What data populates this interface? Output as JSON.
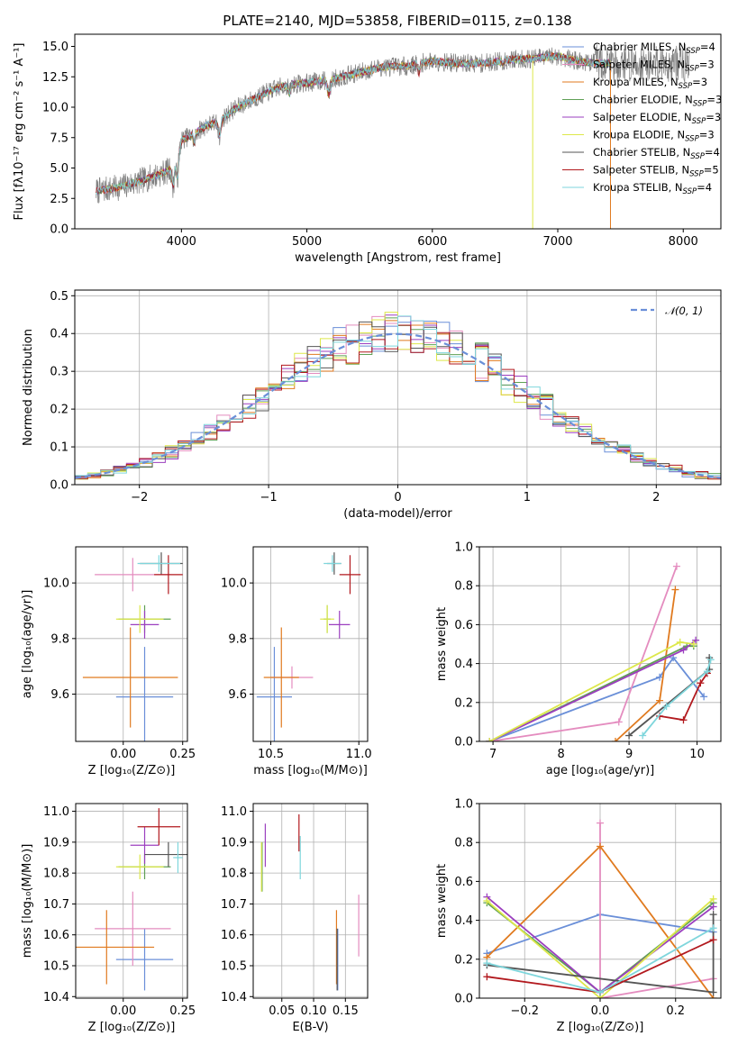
{
  "figure": {
    "title": "PLATE=2140, MJD=53858, FIBERID=0115, z=0.138"
  },
  "chart_data": [
    {
      "id": "spectrum",
      "type": "line",
      "title": "PLATE=2140, MJD=53858, FIBERID=0115, z=0.138",
      "xlabel": "wavelength [Angstrom, rest frame]",
      "ylabel": "Flux [f$_\\lambda$10$^{-17}$ erg cm$^{-2}$ s$^{-1}$ A$^{-1}$]",
      "ylabel_display": "Flux [fλ10⁻¹⁷ erg cm⁻² s⁻¹ A⁻¹]",
      "xlim": [
        3150,
        8300
      ],
      "ylim": [
        0,
        16
      ],
      "xticks": [
        4000,
        5000,
        6000,
        7000,
        8000
      ],
      "yticks": [
        0.0,
        2.5,
        5.0,
        7.5,
        10.0,
        12.5,
        15.0
      ],
      "grid": false,
      "legend": "top-right",
      "continuum": {
        "x": [
          3320,
          3500,
          3600,
          3700,
          3800,
          3900,
          3960,
          4000,
          4100,
          4200,
          4300,
          4400,
          4500,
          4600,
          4700,
          4800,
          4900,
          5000,
          5200,
          5400,
          5600,
          5800,
          6000,
          6200,
          6400,
          6600,
          6800,
          7000,
          7200,
          7400
        ],
        "y": [
          3.1,
          3.4,
          3.7,
          4.0,
          4.4,
          4.8,
          5.3,
          7.3,
          7.8,
          8.5,
          8.8,
          9.7,
          10.3,
          10.8,
          11.3,
          11.7,
          11.9,
          12.0,
          12.3,
          12.8,
          13.3,
          13.4,
          13.8,
          13.6,
          13.6,
          13.9,
          14.0,
          14.2,
          13.7,
          13.6
        ]
      },
      "data_x_range": [
        3320,
        8050
      ],
      "series": [
        {
          "name": "Chabrier MILES, N$_{SSP}$=4",
          "label_main": "Chabrier MILES, N",
          "label_sub": "SSP",
          "label_tail": "=4",
          "color": "#6a8fd8"
        },
        {
          "name": "Salpeter MILES, N$_{SSP}$=3",
          "label_main": "Salpeter MILES, N",
          "label_sub": "SSP",
          "label_tail": "=3",
          "color": "#e48cbf"
        },
        {
          "name": "Kroupa MILES, N$_{SSP}$=3",
          "label_main": "Kroupa MILES, N",
          "label_sub": "SSP",
          "label_tail": "=3",
          "color": "#e07a1f"
        },
        {
          "name": "Chabrier ELODIE, N$_{SSP}$=3",
          "label_main": "Chabrier ELODIE, N",
          "label_sub": "SSP",
          "label_tail": "=3",
          "color": "#5fa055"
        },
        {
          "name": "Salpeter ELODIE, N$_{SSP}$=3",
          "label_main": "Salpeter ELODIE, N",
          "label_sub": "SSP",
          "label_tail": "=3",
          "color": "#9b3fbf"
        },
        {
          "name": "Kroupa ELODIE, N$_{SSP}$=3",
          "label_main": "Kroupa ELODIE, N",
          "label_sub": "SSP",
          "label_tail": "=3",
          "color": "#dde84a"
        },
        {
          "name": "Chabrier STELIB, N$_{SSP}$=4",
          "label_main": "Chabrier STELIB, N",
          "label_sub": "SSP",
          "label_tail": "=4",
          "color": "#555555"
        },
        {
          "name": "Salpeter STELIB, N$_{SSP}$=5",
          "label_main": "Salpeter STELIB, N",
          "label_sub": "SSP",
          "label_tail": "=5",
          "color": "#b2191e"
        },
        {
          "name": "Kroupa STELIB, N$_{SSP}$=4",
          "label_main": "Kroupa STELIB, N",
          "label_sub": "SSP",
          "label_tail": "=4",
          "color": "#7fd6dc"
        }
      ]
    },
    {
      "id": "residuals",
      "type": "histogram",
      "xlabel": "(data-model)/error",
      "ylabel": "Normed distribution",
      "xlim": [
        -2.5,
        2.5
      ],
      "ylim": [
        0,
        0.515
      ],
      "xticks": [
        -2,
        -1,
        0,
        1,
        2
      ],
      "yticks": [
        0.0,
        0.1,
        0.2,
        0.3,
        0.4,
        0.5
      ],
      "grid": true,
      "legend": "top-right",
      "gaussian": {
        "name": "$\\mathcal{N}(0,1)$",
        "label": "𝒩(0, 1)",
        "mu": 0,
        "sigma": 1,
        "color": "#6a8fd8"
      },
      "bin_width": 0.1
    },
    {
      "id": "z-age",
      "type": "errorbar",
      "xlabel": "Z [log$_{10}$(Z/Z$_\\odot$)]",
      "xlabel_display": "Z [log₁₀(Z/Z⊙)]",
      "ylabel": "age  [log$_{10}$(age/yr)]",
      "ylabel_display": "age  [log₁₀(age/yr)]",
      "xlim": [
        -0.2,
        0.27
      ],
      "ylim": [
        9.43,
        10.13
      ],
      "xticks": [
        0.0,
        0.25
      ],
      "xticklabels": [
        "0.00",
        "0.25"
      ],
      "yticks": [
        9.6,
        9.8,
        10.0
      ],
      "yticklabels": [
        "9.6",
        "9.8",
        "10.0"
      ],
      "grid": true,
      "points": [
        {
          "x": 0.09,
          "xerr": 0.12,
          "y": 9.59,
          "yerr": 0.18,
          "color": "#6a8fd8"
        },
        {
          "x": 0.04,
          "xerr": 0.16,
          "y": 10.03,
          "yerr": 0.06,
          "color": "#e48cbf"
        },
        {
          "x": 0.03,
          "xerr": 0.2,
          "y": 9.66,
          "yerr": 0.18,
          "color": "#e07a1f"
        },
        {
          "x": 0.09,
          "xerr": 0.11,
          "y": 9.87,
          "yerr": 0.05,
          "color": "#5fa055"
        },
        {
          "x": 0.09,
          "xerr": 0.06,
          "y": 9.85,
          "yerr": 0.05,
          "color": "#9b3fbf"
        },
        {
          "x": 0.07,
          "xerr": 0.1,
          "y": 9.87,
          "yerr": 0.05,
          "color": "#dde84a"
        },
        {
          "x": 0.16,
          "xerr": 0.09,
          "y": 10.07,
          "yerr": 0.04,
          "color": "#555555"
        },
        {
          "x": 0.19,
          "xerr": 0.06,
          "y": 10.03,
          "yerr": 0.07,
          "color": "#b2191e"
        },
        {
          "x": 0.15,
          "xerr": 0.09,
          "y": 10.07,
          "yerr": 0.03,
          "color": "#7fd6dc"
        }
      ]
    },
    {
      "id": "mass-age",
      "type": "errorbar",
      "xlabel": "mass [log$_{10}$(M/M$_\\odot$)]",
      "xlabel_display": "mass [log₁₀(M/M⊙)]",
      "xlim": [
        10.4,
        11.05
      ],
      "ylim": [
        9.43,
        10.13
      ],
      "xticks": [
        10.5,
        11.0
      ],
      "xticklabels": [
        "10.5",
        "11.0"
      ],
      "yticks": [
        9.6,
        9.8,
        10.0
      ],
      "yticklabels": [
        "9.6",
        "9.8",
        "10.0"
      ],
      "grid": true,
      "points": [
        {
          "x": 10.52,
          "xerr": 0.1,
          "y": 9.59,
          "yerr": 0.18,
          "color": "#6a8fd8"
        },
        {
          "x": 10.62,
          "xerr": 0.12,
          "y": 9.66,
          "yerr": 0.04,
          "color": "#e48cbf"
        },
        {
          "x": 10.56,
          "xerr": 0.1,
          "y": 9.66,
          "yerr": 0.18,
          "color": "#e07a1f"
        },
        {
          "x": 10.82,
          "xerr": 0.02,
          "y": 9.87,
          "yerr": 0.05,
          "color": "#5fa055"
        },
        {
          "x": 10.89,
          "xerr": 0.06,
          "y": 9.85,
          "yerr": 0.05,
          "color": "#9b3fbf"
        },
        {
          "x": 10.82,
          "xerr": 0.04,
          "y": 9.87,
          "yerr": 0.05,
          "color": "#dde84a"
        },
        {
          "x": 10.86,
          "xerr": 0.04,
          "y": 10.07,
          "yerr": 0.04,
          "color": "#555555"
        },
        {
          "x": 10.95,
          "xerr": 0.06,
          "y": 10.03,
          "yerr": 0.07,
          "color": "#b2191e"
        },
        {
          "x": 10.85,
          "xerr": 0.05,
          "y": 10.07,
          "yerr": 0.03,
          "color": "#7fd6dc"
        }
      ]
    },
    {
      "id": "age-weight",
      "type": "line",
      "xlabel": "age  [log$_{10}$(age/yr)]",
      "xlabel_display": "age  [log₁₀(age/yr)]",
      "ylabel": "mass weight",
      "xlim": [
        6.8,
        10.35
      ],
      "ylim": [
        0,
        1.0
      ],
      "xticks": [
        7,
        8,
        9,
        10
      ],
      "xticklabels": [
        "7",
        "8",
        "9",
        "10"
      ],
      "yticks": [
        0.0,
        0.2,
        0.4,
        0.6,
        0.8,
        1.0
      ],
      "yticklabels": [
        "0.0",
        "0.2",
        "0.4",
        "0.6",
        "0.8",
        "1.0"
      ],
      "grid": true,
      "series": [
        {
          "color": "#6a8fd8",
          "x": [
            6.95,
            9.45,
            9.65,
            10.1
          ],
          "y": [
            0.0,
            0.33,
            0.43,
            0.23
          ]
        },
        {
          "color": "#e48cbf",
          "x": [
            6.95,
            8.85,
            9.7
          ],
          "y": [
            0.0,
            0.1,
            0.9
          ]
        },
        {
          "color": "#e07a1f",
          "x": [
            8.8,
            9.45,
            9.68
          ],
          "y": [
            0.0,
            0.21,
            0.78
          ]
        },
        {
          "color": "#5fa055",
          "x": [
            6.95,
            9.85,
            9.95
          ],
          "y": [
            0.0,
            0.49,
            0.49
          ]
        },
        {
          "color": "#9b3fbf",
          "x": [
            6.95,
            9.8,
            9.98
          ],
          "y": [
            0.0,
            0.47,
            0.52
          ]
        },
        {
          "color": "#dde84a",
          "x": [
            6.95,
            9.75,
            9.95
          ],
          "y": [
            0.0,
            0.51,
            0.5
          ]
        },
        {
          "color": "#555555",
          "x": [
            9.0,
            10.18,
            10.18
          ],
          "y": [
            0.03,
            0.37,
            0.43
          ]
        },
        {
          "color": "#b2191e",
          "x": [
            9.45,
            9.8,
            10.05,
            10.15
          ],
          "y": [
            0.13,
            0.11,
            0.3,
            0.35
          ]
        },
        {
          "color": "#7fd6dc",
          "x": [
            9.2,
            9.55,
            10.15,
            10.2
          ],
          "y": [
            0.03,
            0.18,
            0.36,
            0.42
          ]
        }
      ]
    },
    {
      "id": "z-mass",
      "type": "errorbar",
      "xlabel": "Z [log$_{10}$(Z/Z$_\\odot$)]",
      "xlabel_display": "Z [log₁₀(Z/Z⊙)]",
      "ylabel": "mass [log$_{10}$(M/M$_\\odot$)]",
      "ylabel_display": "mass [log₁₀(M/M⊙)]",
      "xlim": [
        -0.2,
        0.27
      ],
      "ylim": [
        10.395,
        11.025
      ],
      "xticks": [
        0.0,
        0.25
      ],
      "xticklabels": [
        "0.00",
        "0.25"
      ],
      "yticks": [
        10.4,
        10.5,
        10.6,
        10.7,
        10.8,
        10.9,
        11.0
      ],
      "yticklabels": [
        "10.4",
        "10.5",
        "10.6",
        "10.7",
        "10.8",
        "10.9",
        "11.0"
      ],
      "grid": true,
      "points": [
        {
          "x": 0.09,
          "xerr": 0.12,
          "y": 10.52,
          "yerr": 0.1,
          "color": "#6a8fd8"
        },
        {
          "x": 0.04,
          "xerr": 0.16,
          "y": 10.62,
          "yerr": 0.12,
          "color": "#e48cbf"
        },
        {
          "x": -0.07,
          "xerr": 0.2,
          "y": 10.56,
          "yerr": 0.12,
          "color": "#e07a1f"
        },
        {
          "x": 0.09,
          "xerr": 0.11,
          "y": 10.82,
          "yerr": 0.04,
          "color": "#5fa055"
        },
        {
          "x": 0.09,
          "xerr": 0.06,
          "y": 10.89,
          "yerr": 0.06,
          "color": "#9b3fbf"
        },
        {
          "x": 0.07,
          "xerr": 0.1,
          "y": 10.82,
          "yerr": 0.04,
          "color": "#dde84a"
        },
        {
          "x": 0.19,
          "xerr": 0.1,
          "y": 10.86,
          "yerr": 0.04,
          "color": "#555555"
        },
        {
          "x": 0.15,
          "xerr": 0.09,
          "y": 10.95,
          "yerr": 0.06,
          "color": "#b2191e"
        },
        {
          "x": 0.23,
          "xerr": 0.02,
          "y": 10.85,
          "yerr": 0.05,
          "color": "#7fd6dc"
        }
      ]
    },
    {
      "id": "ebv-mass",
      "type": "errorbar",
      "xlabel": "E(B-V)",
      "xlim": [
        0.005,
        0.185
      ],
      "ylim": [
        10.395,
        11.025
      ],
      "xticks": [
        0.05,
        0.1,
        0.15
      ],
      "xticklabels": [
        "0.05",
        "0.10",
        "0.15"
      ],
      "yticks": [
        10.4,
        10.5,
        10.6,
        10.7,
        10.8,
        10.9,
        11.0
      ],
      "yticklabels": [
        "10.4",
        "10.5",
        "10.6",
        "10.7",
        "10.8",
        "10.9",
        "11.0"
      ],
      "grid": true,
      "points": [
        {
          "x": 0.138,
          "y": 10.52,
          "yerr": 0.1,
          "color": "#6a8fd8"
        },
        {
          "x": 0.171,
          "y": 10.63,
          "yerr": 0.1,
          "color": "#e48cbf"
        },
        {
          "x": 0.136,
          "y": 10.56,
          "yerr": 0.12,
          "color": "#e07a1f"
        },
        {
          "x": 0.019,
          "y": 10.82,
          "yerr": 0.08,
          "color": "#5fa055"
        },
        {
          "x": 0.024,
          "y": 10.89,
          "yerr": 0.07,
          "color": "#9b3fbf"
        },
        {
          "x": 0.018,
          "y": 10.82,
          "yerr": 0.08,
          "color": "#dde84a"
        },
        {
          "x": 0.137,
          "y": 10.52,
          "yerr": 0.1,
          "color": "#555555"
        },
        {
          "x": 0.077,
          "y": 10.93,
          "yerr": 0.06,
          "color": "#b2191e"
        },
        {
          "x": 0.079,
          "y": 10.85,
          "yerr": 0.07,
          "color": "#7fd6dc"
        }
      ]
    },
    {
      "id": "z-weight",
      "type": "line",
      "xlabel": "Z [log$_{10}$(Z/Z$_\\odot$)]",
      "xlabel_display": "Z [log₁₀(Z/Z⊙)]",
      "ylabel": "mass weight",
      "xlim": [
        -0.32,
        0.32
      ],
      "ylim": [
        0,
        1.0
      ],
      "xticks": [
        -0.2,
        0.0,
        0.2
      ],
      "xticklabels": [
        "−0.2",
        "0.0",
        "0.2"
      ],
      "yticks": [
        0.0,
        0.2,
        0.4,
        0.6,
        0.8,
        1.0
      ],
      "yticklabels": [
        "0.0",
        "0.2",
        "0.4",
        "0.6",
        "0.8",
        "1.0"
      ],
      "grid": true,
      "series": [
        {
          "color": "#6a8fd8",
          "x": [
            -0.3,
            0.0,
            0.3
          ],
          "y": [
            0.23,
            0.43,
            0.34
          ]
        },
        {
          "color": "#e48cbf",
          "x": [
            0.0,
            0.0,
            0.3
          ],
          "y": [
            0.9,
            0.0,
            0.1
          ]
        },
        {
          "color": "#e07a1f",
          "x": [
            -0.3,
            0.0,
            0.3
          ],
          "y": [
            0.21,
            0.78,
            0.0
          ]
        },
        {
          "color": "#5fa055",
          "x": [
            -0.3,
            0.0,
            0.3
          ],
          "y": [
            0.49,
            0.03,
            0.49
          ]
        },
        {
          "color": "#9b3fbf",
          "x": [
            -0.3,
            0.0,
            0.3
          ],
          "y": [
            0.52,
            0.03,
            0.47
          ]
        },
        {
          "color": "#dde84a",
          "x": [
            -0.3,
            0.0,
            0.3
          ],
          "y": [
            0.5,
            0.0,
            0.51
          ]
        },
        {
          "color": "#555555",
          "x": [
            -0.3,
            0.3,
            0.3
          ],
          "y": [
            0.17,
            0.03,
            0.43
          ]
        },
        {
          "color": "#b2191e",
          "x": [
            -0.3,
            0.0,
            0.3
          ],
          "y": [
            0.11,
            0.03,
            0.3
          ]
        },
        {
          "color": "#7fd6dc",
          "x": [
            -0.3,
            0.0,
            0.3
          ],
          "y": [
            0.18,
            0.03,
            0.36
          ]
        }
      ]
    }
  ]
}
